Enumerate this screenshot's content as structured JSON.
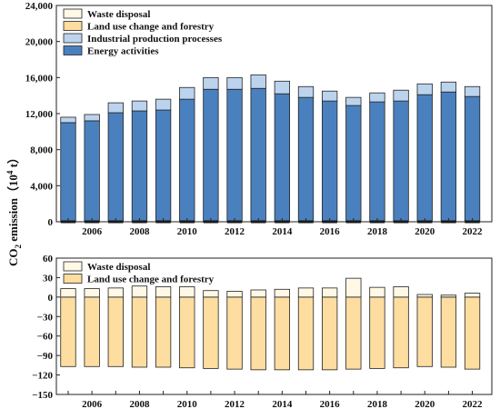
{
  "ylabel": {
    "main": "CO",
    "sub": "2",
    "mid": " emission（10",
    "sup": "4",
    "end": " t）"
  },
  "colors": {
    "waste": "#fff8e6",
    "land": "#fddda0",
    "industrial": "#bcd3ee",
    "energy": "#4a80be",
    "edge": "#222222"
  },
  "chart_data": [
    {
      "type": "bar",
      "stacked": true,
      "categories": [
        "2005",
        "2006",
        "2007",
        "2008",
        "2009",
        "2010",
        "2011",
        "2012",
        "2013",
        "2014",
        "2015",
        "2016",
        "2017",
        "2018",
        "2019",
        "2020",
        "2021",
        "2022"
      ],
      "xtick_labels": [
        "2006",
        "2008",
        "2010",
        "2012",
        "2014",
        "2016",
        "2018",
        "2020",
        "2022"
      ],
      "ylim": [
        0,
        24000
      ],
      "yticks": [
        0,
        4000,
        8000,
        12000,
        16000,
        20000,
        24000
      ],
      "ytick_labels": [
        "0",
        "4,000",
        "8,000",
        "12,000",
        "16,000",
        "20,000",
        "24,000"
      ],
      "legend_position": "top-left",
      "legend": [
        "Waste disposal",
        "Land use change and forestry",
        "Industrial production processes",
        "Energy activities"
      ],
      "series": [
        {
          "name": "Energy activities",
          "key": "energy",
          "values": [
            11000,
            11200,
            12100,
            12300,
            12400,
            13600,
            14700,
            14700,
            14800,
            14200,
            13800,
            13400,
            12900,
            13300,
            13400,
            14100,
            14400,
            13900
          ]
        },
        {
          "name": "Industrial production processes",
          "key": "industrial",
          "values": [
            600,
            700,
            1100,
            1100,
            1200,
            1300,
            1300,
            1300,
            1500,
            1400,
            1200,
            1100,
            900,
            1000,
            1200,
            1200,
            1100,
            1100
          ]
        },
        {
          "name": "Land use change and forestry",
          "key": "land",
          "values": [
            0,
            0,
            0,
            0,
            0,
            0,
            0,
            0,
            0,
            0,
            0,
            0,
            0,
            0,
            0,
            0,
            0,
            0
          ]
        },
        {
          "name": "Waste disposal",
          "key": "waste",
          "values": [
            0,
            0,
            0,
            0,
            0,
            0,
            0,
            0,
            0,
            0,
            0,
            0,
            0,
            0,
            0,
            0,
            0,
            0
          ]
        }
      ]
    },
    {
      "type": "bar",
      "stacked": true,
      "categories": [
        "2005",
        "2006",
        "2007",
        "2008",
        "2009",
        "2010",
        "2011",
        "2012",
        "2013",
        "2014",
        "2015",
        "2016",
        "2017",
        "2018",
        "2019",
        "2020",
        "2021",
        "2022"
      ],
      "xtick_labels": [
        "2006",
        "2008",
        "2010",
        "2012",
        "2014",
        "2016",
        "2018",
        "2020",
        "2022"
      ],
      "ylim": [
        -150,
        60
      ],
      "yticks": [
        -150,
        -120,
        -90,
        -60,
        -30,
        0,
        30,
        60
      ],
      "ytick_labels": [
        "−150",
        "−120",
        "−90",
        "−60",
        "−30",
        "0",
        "30",
        "60"
      ],
      "legend_position": "top-left",
      "legend": [
        "Waste disposal",
        "Land use change and forestry"
      ],
      "series": [
        {
          "name": "Land use change and forestry",
          "key": "land",
          "values": [
            -107,
            -107,
            -107,
            -108,
            -108,
            -109,
            -110,
            -111,
            -112,
            -112,
            -112,
            -112,
            -111,
            -110,
            -109,
            -107,
            -108,
            -111
          ]
        },
        {
          "name": "Waste disposal",
          "key": "waste",
          "values": [
            13,
            13,
            14,
            17,
            16,
            16,
            10,
            9,
            11,
            12,
            14,
            14,
            29,
            15,
            16,
            4,
            3,
            6
          ]
        }
      ]
    }
  ]
}
